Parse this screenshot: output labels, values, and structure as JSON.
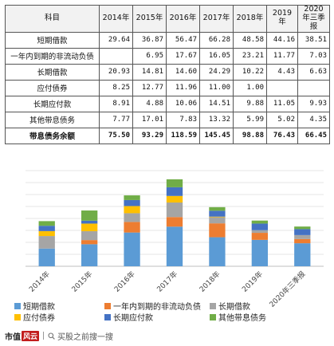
{
  "table": {
    "headers": [
      "科目",
      "2014年",
      "2015年",
      "2016年",
      "2017年",
      "2018年",
      "2019年",
      "2020年三季报"
    ],
    "rows": [
      {
        "name": "短期借款",
        "values": [
          "29.64",
          "36.87",
          "56.47",
          "66.28",
          "48.58",
          "44.16",
          "38.51"
        ]
      },
      {
        "name": "一年内到期的非流动负债",
        "values": [
          "",
          "6.95",
          "17.67",
          "16.05",
          "23.21",
          "11.77",
          "7.03"
        ]
      },
      {
        "name": "长期借款",
        "values": [
          "20.93",
          "14.81",
          "14.60",
          "24.29",
          "10.22",
          "4.43",
          "6.63"
        ]
      },
      {
        "name": "应付债券",
        "values": [
          "8.25",
          "12.77",
          "11.96",
          "11.00",
          "1.00",
          "",
          ""
        ]
      },
      {
        "name": "长期应付款",
        "values": [
          "8.91",
          "4.88",
          "10.06",
          "14.51",
          "9.88",
          "11.05",
          "9.93"
        ]
      },
      {
        "name": "其他带息债务",
        "values": [
          "7.77",
          "17.01",
          "7.83",
          "13.32",
          "5.99",
          "5.02",
          "4.35"
        ]
      },
      {
        "name": "带息债务余额",
        "values": [
          "75.50",
          "93.29",
          "118.59",
          "145.45",
          "98.88",
          "76.43",
          "66.45"
        ]
      }
    ]
  },
  "chart_data": {
    "type": "bar",
    "stacked": true,
    "categories": [
      "2014年",
      "2015年",
      "2016年",
      "2017年",
      "2018年",
      "2019年",
      "2020年三季报"
    ],
    "series": [
      {
        "name": "短期借款",
        "color": "#5b9bd5",
        "values": [
          29.64,
          36.87,
          56.47,
          66.28,
          48.58,
          44.16,
          38.51
        ]
      },
      {
        "name": "一年内到期的非流动负债",
        "color": "#ed7d31",
        "values": [
          0,
          6.95,
          17.67,
          16.05,
          23.21,
          11.77,
          7.03
        ]
      },
      {
        "name": "长期借款",
        "color": "#a5a5a5",
        "values": [
          20.93,
          14.81,
          14.6,
          24.29,
          10.22,
          4.43,
          6.63
        ]
      },
      {
        "name": "应付债券",
        "color": "#ffc000",
        "values": [
          8.25,
          12.77,
          11.96,
          11.0,
          1.0,
          0,
          0
        ]
      },
      {
        "name": "长期应付款",
        "color": "#4472c4",
        "values": [
          8.91,
          4.88,
          10.06,
          14.51,
          9.88,
          11.05,
          9.93
        ]
      },
      {
        "name": "其他带息债务",
        "color": "#70ad47",
        "values": [
          7.77,
          17.01,
          7.83,
          13.32,
          5.99,
          5.02,
          4.35
        ]
      }
    ],
    "ylim": [
      0,
      160
    ],
    "grid": true,
    "legend_position": "bottom"
  },
  "footer": {
    "brand": "市值",
    "brand_badge": "风云",
    "search_text": "买股之前搜一搜"
  }
}
